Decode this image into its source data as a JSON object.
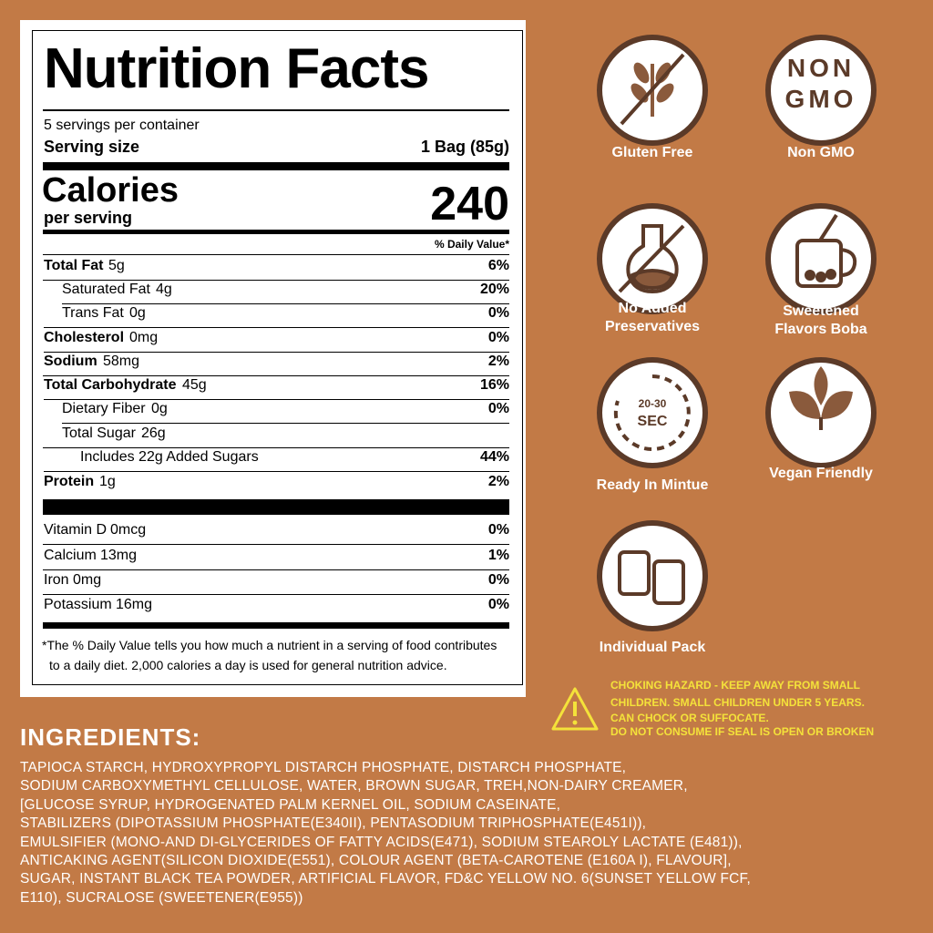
{
  "nutrition": {
    "title": "Nutrition Facts",
    "servings": "5 servings per container",
    "serving_size_label": "Serving size",
    "serving_size": "1 Bag (85g)",
    "calories_label": "Calories",
    "per_serving": "per serving",
    "calories": "240",
    "dv_header": "% Daily Value*",
    "rows": [
      {
        "label": "Total Fat",
        "amount": "5g",
        "dv": "6%",
        "bold": true,
        "indent": 0
      },
      {
        "label": "Saturated Fat",
        "amount": "4g",
        "dv": "20%",
        "bold": false,
        "indent": 1
      },
      {
        "label": "Trans Fat",
        "amount": "0g",
        "dv": "0%",
        "bold": false,
        "indent": 1
      },
      {
        "label": "Cholesterol",
        "amount": "0mg",
        "dv": "0%",
        "bold": true,
        "indent": 0
      },
      {
        "label": "Sodium",
        "amount": "58mg",
        "dv": "2%",
        "bold": true,
        "indent": 0
      },
      {
        "label": "Total Carbohydrate",
        "amount": "45g",
        "dv": "16%",
        "bold": true,
        "indent": 0
      },
      {
        "label": "Dietary Fiber",
        "amount": "0g",
        "dv": "0%",
        "bold": false,
        "indent": 1
      },
      {
        "label": "Total Sugar",
        "amount": "26g",
        "dv": null,
        "bold": false,
        "indent": 1
      },
      {
        "label": "Includes 22g Added Sugars",
        "amount": null,
        "dv": "44%",
        "bold": false,
        "indent": 2
      },
      {
        "label": "Protein",
        "amount": "1g",
        "dv": "2%",
        "bold": true,
        "indent": 0
      }
    ],
    "vitamins": [
      {
        "label": "Vitamin D",
        "amount": "0mcg",
        "dv": "0%"
      },
      {
        "label": "Calcium",
        "amount": "13mg",
        "dv": "1%"
      },
      {
        "label": "Iron",
        "amount": "0mg",
        "dv": "0%"
      },
      {
        "label": "Potassium",
        "amount": "16mg",
        "dv": "0%"
      }
    ],
    "footnote": [
      "*The % Daily Value tells you how much a nutrient in a serving of food contributes",
      "to a daily diet. 2,000 calories a day is used for general nutrition advice."
    ]
  },
  "badges": [
    "Gluten Free",
    "Non GMO",
    "No Added Preservatives",
    "Sweetened Flavors Boba",
    "Ready In Mintue",
    "Vegan Friendly",
    "Individual Pack"
  ],
  "badge_icon_text": {
    "non": "NON",
    "gmo": "GMO",
    "time": "20-30",
    "sec": "SEC"
  },
  "warning": [
    "CHOKING HAZARD - KEEP AWAY FROM SMALL",
    "CHILDREN. SMALL CHILDREN UNDER 5 YEARS.",
    "CAN CHOCK OR SUFFOCATE.",
    "DO NOT CONSUME IF SEAL IS OPEN OR BROKEN"
  ],
  "ingredients": {
    "heading": "INGREDIENTS:",
    "lines": [
      "TAPIOCA STARCH, HYDROXYPROPYL DISTARCH PHOSPHATE, DISTARCH PHOSPHATE,",
      "SODIUM CARBOXYMETHYL CELLULOSE, WATER, BROWN SUGAR, TREH,NON-DAIRY CREAMER,",
      "[GLUCOSE SYRUP, HYDROGENATED PALM KERNEL OIL, SODIUM CASEINATE,",
      "STABILIZERS (DIPOTASSIUM PHOSPHATE(E340II), PENTASODIUM TRIPHOSPHATE(E451I)),",
      "EMULSIFIER (MONO-AND DI-GLYCERIDES OF FATTY ACIDS(E471), SODIUM STEAROLY LACTATE (E481)),",
      "ANTICAKING AGENT(SILICON DIOXIDE(E551), COLOUR AGENT (BETA-CAROTENE (E160A I), FLAVOUR],",
      "SUGAR, INSTANT BLACK TEA POWDER, ARTIFICIAL FLAVOR, FD&C YELLOW NO. 6(SUNSET YELLOW FCF,",
      "E110), SUCRALOSE (SWEETENER(E955))"
    ]
  }
}
